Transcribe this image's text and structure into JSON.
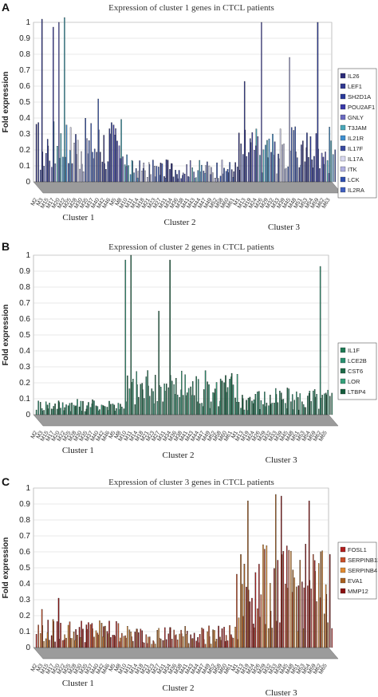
{
  "chart_data": [
    {
      "type": "bar",
      "panel_label": "A",
      "title": "Expression of cluster 1 genes in CTCL patients",
      "ylabel": "Fold expression",
      "ylim": [
        0,
        1
      ],
      "yticks": [
        "0",
        "0.1",
        "0.2",
        "0.3",
        "0.4",
        "0.5",
        "0.6",
        "0.7",
        "0.8",
        "0.9",
        "1"
      ],
      "x_tick_labels": [
        "M2",
        "M3",
        "M15",
        "M17",
        "M20",
        "M22",
        "M25",
        "M28",
        "M30",
        "M35",
        "M37",
        "M40",
        "M42",
        "M46",
        "M5",
        "M8",
        "M10",
        "M11",
        "M14",
        "M18",
        "M21",
        "M23",
        "M27",
        "M31",
        "M34",
        "M36",
        "M38",
        "M41",
        "M43",
        "M44",
        "M47",
        "M49",
        "M52",
        "M58",
        "M60",
        "M61",
        "M1",
        "M13",
        "M19",
        "M24",
        "M26",
        "M29",
        "M32",
        "M33",
        "M39",
        "M45",
        "M48",
        "M51",
        "M53",
        "M54",
        "M59",
        "M62",
        "M63"
      ],
      "groups": [
        {
          "label": "Cluster 1",
          "count": 16
        },
        {
          "label": "Cluster 2",
          "count": 20
        },
        {
          "label": "Cluster 3",
          "count": 17
        }
      ],
      "series": [
        {
          "name": "IL26",
          "color": "#2c2c7a"
        },
        {
          "name": "LEF1",
          "color": "#303890"
        },
        {
          "name": "SH2D1A",
          "color": "#2a3a9a"
        },
        {
          "name": "POU2AF1",
          "color": "#3a3aa8"
        },
        {
          "name": "GNLY",
          "color": "#6a6ac0"
        },
        {
          "name": "T3JAM",
          "color": "#49a7b9"
        },
        {
          "name": "IL21R",
          "color": "#3f8fd0"
        },
        {
          "name": "IL17F",
          "color": "#3a4aa0"
        },
        {
          "name": "IL17A",
          "color": "#d8d8f0"
        },
        {
          "name": "ITK",
          "color": "#b0b0e0"
        },
        {
          "name": "LCK",
          "color": "#3050b0"
        },
        {
          "name": "IL2RA",
          "color": "#4060c0"
        }
      ],
      "notable_values": [
        {
          "x": "M3",
          "y": 1.02
        },
        {
          "x": "M17",
          "y": 0.97
        },
        {
          "x": "M20",
          "y": 1.0
        },
        {
          "x": "M22",
          "y": 1.03
        },
        {
          "x": "M40",
          "y": 0.52
        },
        {
          "x": "M13",
          "y": 0.63
        },
        {
          "x": "M26",
          "y": 1.0
        },
        {
          "x": "M45",
          "y": 0.78
        },
        {
          "x": "M59",
          "y": 1.0
        }
      ]
    },
    {
      "type": "bar",
      "panel_label": "B",
      "title": "Expression of cluster 2 genes in CTCL patients",
      "ylabel": "Fold expression",
      "ylim": [
        0,
        1
      ],
      "yticks": [
        "0",
        "0.1",
        "0.2",
        "0.3",
        "0.4",
        "0.5",
        "0.6",
        "0.7",
        "0.8",
        "0.9",
        "1"
      ],
      "x_tick_labels": [
        "M2",
        "M3",
        "M15",
        "M17",
        "M20",
        "M22",
        "M25",
        "M28",
        "M30",
        "M35",
        "M37",
        "M40",
        "M42",
        "M46",
        "M5",
        "M8",
        "M10",
        "M11",
        "M14",
        "M18",
        "M21",
        "M23",
        "M27",
        "M31",
        "M34",
        "M36",
        "M38",
        "M41",
        "M43",
        "M44",
        "M47",
        "M49",
        "M52",
        "M58",
        "M60",
        "M61",
        "M1",
        "M13",
        "M19",
        "M24",
        "M26",
        "M29",
        "M32",
        "M33",
        "M39",
        "M45",
        "M48",
        "M51",
        "M53",
        "M54",
        "M59",
        "M62",
        "M65"
      ],
      "groups": [
        {
          "label": "Cluster 1",
          "count": 16
        },
        {
          "label": "Cluster 2",
          "count": 20
        },
        {
          "label": "Cluster 3",
          "count": 17
        }
      ],
      "series": [
        {
          "name": "IL1F",
          "color": "#1f7a55"
        },
        {
          "name": "LCE2B",
          "color": "#2a9070"
        },
        {
          "name": "CST6",
          "color": "#1e6a48"
        },
        {
          "name": "LOR",
          "color": "#35a07a"
        },
        {
          "name": "LTBP4",
          "color": "#155c3c"
        }
      ],
      "notable_values": [
        {
          "x": "M10",
          "y": 0.97
        },
        {
          "x": "M11",
          "y": 1.0
        },
        {
          "x": "M34",
          "y": 0.97
        },
        {
          "x": "M27",
          "y": 0.65
        },
        {
          "x": "M62",
          "y": 0.93
        }
      ]
    },
    {
      "type": "bar",
      "panel_label": "C",
      "title": "Expression of cluster 3 genes in CTCL patients",
      "ylabel": "Fold expression",
      "ylim": [
        0,
        1
      ],
      "yticks": [
        "0",
        "0.1",
        "0.2",
        "0.3",
        "0.4",
        "0.5",
        "0.6",
        "0.7",
        "0.8",
        "0.9",
        "1"
      ],
      "x_tick_labels": [
        "M2",
        "M3",
        "M15",
        "M17",
        "M20",
        "M22",
        "M25",
        "M28",
        "M30",
        "M35",
        "M37",
        "M40",
        "M42",
        "M46",
        "M5",
        "M8",
        "M10",
        "M11",
        "M14",
        "M18",
        "M21",
        "M23",
        "M27",
        "M31",
        "M34",
        "M36",
        "M38",
        "M41",
        "M43",
        "M44",
        "M47",
        "M49",
        "M52",
        "M58",
        "M60",
        "M61",
        "M1",
        "M13",
        "M19",
        "M24",
        "M26",
        "M29",
        "M32",
        "M33",
        "M39",
        "M45",
        "M48",
        "M51",
        "M53",
        "M54",
        "M59",
        "M62",
        "M65"
      ],
      "groups": [
        {
          "label": "Cluster 1",
          "count": 16
        },
        {
          "label": "Cluster 2",
          "count": 20
        },
        {
          "label": "Cluster 3",
          "count": 17
        }
      ],
      "series": [
        {
          "name": "FOSL1",
          "color": "#b01f1f"
        },
        {
          "name": "SERPINB13",
          "color": "#c8502a"
        },
        {
          "name": "SERPINB4",
          "color": "#e08a30"
        },
        {
          "name": "EVA1",
          "color": "#a86020"
        },
        {
          "name": "MMP12",
          "color": "#8a1010"
        }
      ],
      "notable_values": [
        {
          "x": "M3",
          "y": 0.24
        },
        {
          "x": "M20",
          "y": 0.31
        },
        {
          "x": "M1",
          "y": 0.46
        },
        {
          "x": "M19",
          "y": 0.92
        },
        {
          "x": "M33",
          "y": 0.96
        },
        {
          "x": "M39",
          "y": 0.95
        },
        {
          "x": "M54",
          "y": 0.92
        }
      ]
    }
  ]
}
